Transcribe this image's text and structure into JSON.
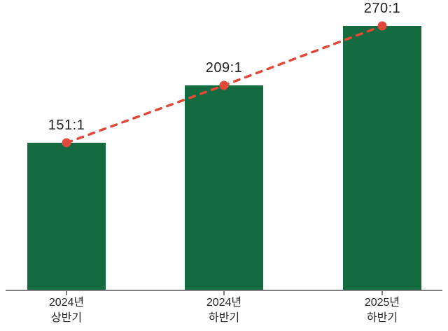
{
  "chart_data": {
    "type": "bar",
    "title": "",
    "categories": [
      [
        "2024년",
        "상반기"
      ],
      [
        "2024년",
        "하반기"
      ],
      [
        "2025년",
        "하반기"
      ]
    ],
    "values": [
      151,
      209,
      270
    ],
    "value_labels": [
      "151:1",
      "209:1",
      "270:1"
    ],
    "series": [
      {
        "name": "competition-ratio-bars",
        "type": "bar",
        "values": [
          151,
          209,
          270
        ]
      },
      {
        "name": "trend-line",
        "type": "line",
        "style": "dashed",
        "values": [
          151,
          209,
          270
        ]
      }
    ],
    "xlabel": "",
    "ylabel": "",
    "ylim": [
      0,
      296
    ],
    "grid": false,
    "legend": false,
    "colors": {
      "bar": "#146b40",
      "line": "#e2493a",
      "marker": "#e2493a",
      "axis": "#7f7f7f",
      "value_label": "#1f1f1f",
      "category_label": "#262626",
      "background": "#ffffff"
    }
  }
}
